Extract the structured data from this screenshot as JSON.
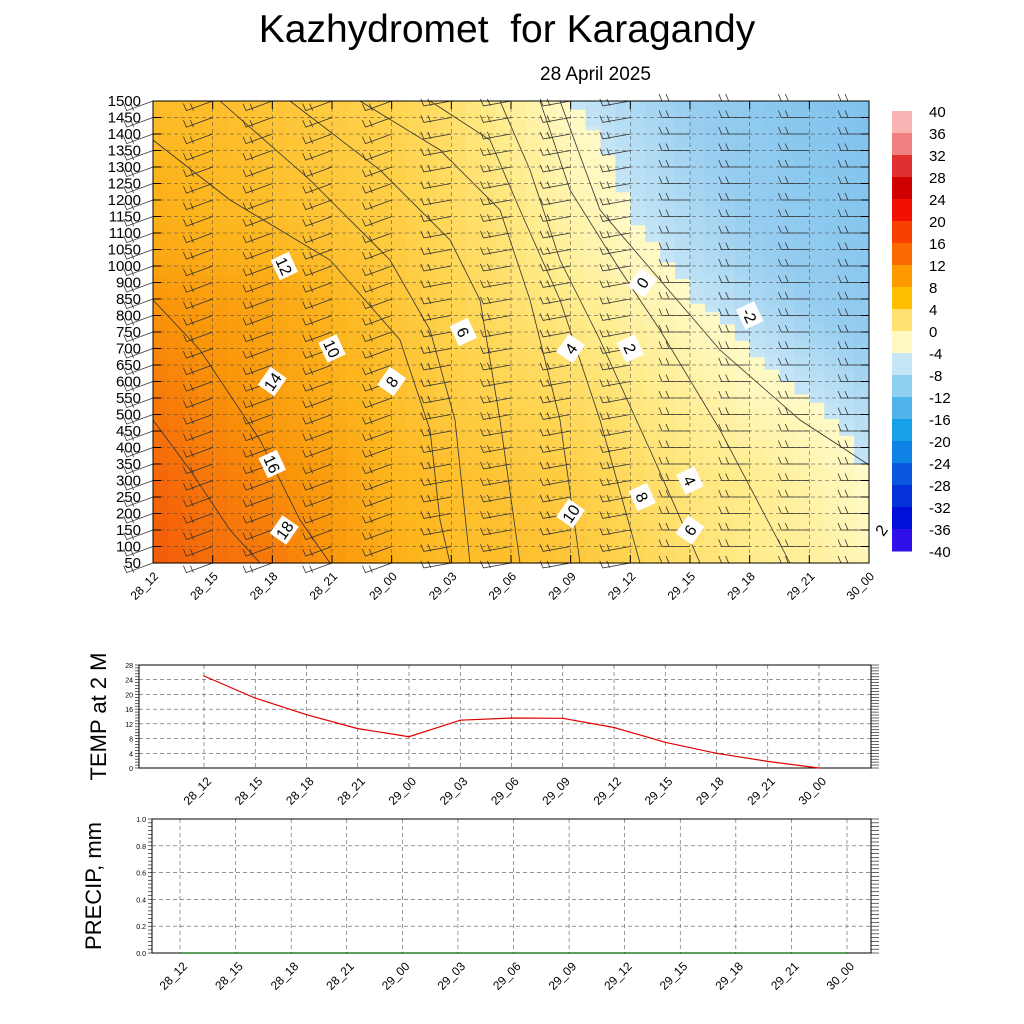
{
  "title": "Kazhydromet  for Karagandy",
  "subtitle": "28 April 2025",
  "chart_data": [
    {
      "type": "heatmap",
      "name": "temperature-height-section",
      "x_categories": [
        "28_12",
        "28_15",
        "28_18",
        "28_21",
        "29_00",
        "29_03",
        "29_06",
        "29_09",
        "29_12",
        "29_15",
        "29_18",
        "29_21",
        "30_00"
      ],
      "y_levels": [
        50,
        100,
        150,
        200,
        250,
        300,
        350,
        400,
        450,
        500,
        550,
        600,
        650,
        700,
        750,
        800,
        850,
        900,
        1000,
        1050,
        1100,
        1150,
        1200,
        1250,
        1300,
        1350,
        1400,
        1450,
        1500
      ],
      "y_tick_labels": [
        "50",
        "100",
        "150",
        "200",
        "250",
        "300",
        "350",
        "400",
        "450",
        "500",
        "550",
        "600",
        "650",
        "700",
        "750",
        "800",
        "850",
        "900",
        "1000",
        "1050",
        "1100",
        "1150",
        "1200",
        "1250",
        "1300",
        "1350",
        "1400",
        "1450",
        "1500"
      ],
      "temperature_grid_rows_bottom_to_top": [
        [
          22,
          20,
          19,
          16,
          13,
          11,
          11,
          10,
          8,
          6,
          4,
          3,
          1
        ],
        [
          21,
          19,
          17,
          15,
          12,
          11,
          10,
          9,
          7,
          5,
          4,
          2,
          0
        ],
        [
          19,
          17,
          15,
          13,
          11,
          9,
          8,
          7,
          5,
          3,
          1,
          0,
          -1
        ],
        [
          16,
          15,
          14,
          12,
          10,
          8,
          6,
          4,
          2,
          0,
          -1,
          -2,
          -3
        ],
        [
          13,
          12,
          11,
          10,
          9,
          7,
          5,
          2,
          0,
          -1,
          -2,
          -3,
          -4
        ],
        [
          11,
          11,
          10,
          9,
          8,
          6,
          3,
          0,
          -1,
          -2,
          -3,
          -4,
          -5
        ]
      ],
      "grid_y_levels": [
        50,
        300,
        550,
        850,
        1150,
        1500
      ],
      "contour_labels": [
        {
          "text": "12",
          "x": "28_18",
          "y": 1000,
          "color": "white-box"
        },
        {
          "text": "14",
          "x": "28_18",
          "y": 600
        },
        {
          "text": "16",
          "x": "28_18",
          "y": 350
        },
        {
          "text": "18",
          "x": "28_18",
          "y": 150
        },
        {
          "text": "10",
          "x": "28_21",
          "y": 700
        },
        {
          "text": "8",
          "x": "29_00",
          "y": 600
        },
        {
          "text": "6",
          "x": "29_03",
          "y": 750
        },
        {
          "text": "4",
          "x": "29_09",
          "y": 700
        },
        {
          "text": "2",
          "x": "29_12",
          "y": 700
        },
        {
          "text": "0",
          "x": "29_12",
          "y": 900
        },
        {
          "text": "-2",
          "x": "29_18",
          "y": 800
        },
        {
          "text": "10",
          "x": "29_09",
          "y": 200
        },
        {
          "text": "8",
          "x": "29_12",
          "y": 250
        },
        {
          "text": "6",
          "x": "29_15",
          "y": 150
        },
        {
          "text": "4",
          "x": "29_15",
          "y": 300
        },
        {
          "text": "2",
          "x": "30_00",
          "y": 150
        }
      ],
      "colorbar": {
        "labels": [
          "40",
          "36",
          "32",
          "28",
          "24",
          "20",
          "16",
          "12",
          "8",
          "4",
          "0",
          "-4",
          "-8",
          "-12",
          "-16",
          "-20",
          "-24",
          "-28",
          "-32",
          "-36",
          "-40"
        ],
        "colors": [
          "#f9b4b4",
          "#f08080",
          "#e03030",
          "#d00000",
          "#f21000",
          "#f84000",
          "#fb6a00",
          "#fd9a00",
          "#ffbf00",
          "#ffe070",
          "#fff8c0",
          "#c6e6f6",
          "#8fcfef",
          "#4fb4ea",
          "#16a0e8",
          "#0f82e6",
          "#0a58e0",
          "#0432d8",
          "#0010d8",
          "#3010e8",
          "#7a28e8"
        ]
      },
      "wind_barbs": true,
      "grid": true
    },
    {
      "type": "line",
      "name": "temp-2m",
      "ylabel": "TEMP at 2 M",
      "ylim": [
        0,
        28
      ],
      "y_ticks": [
        "0",
        "4",
        "8",
        "12",
        "16",
        "20",
        "24",
        "28"
      ],
      "categories": [
        "28_12",
        "28_15",
        "28_18",
        "28_21",
        "29_00",
        "29_03",
        "29_06",
        "29_09",
        "29_12",
        "29_15",
        "29_18",
        "29_21",
        "30_00"
      ],
      "values": [
        25,
        19,
        14.5,
        10.7,
        8.5,
        13,
        13.6,
        13.5,
        11,
        7,
        4,
        1.8,
        0
      ],
      "color": "#e00000",
      "grid": true
    },
    {
      "type": "line",
      "name": "precip",
      "ylabel": "PRECIP, mm",
      "ylim": [
        0,
        1.0
      ],
      "y_ticks": [
        "0.0",
        "0.2",
        "0.4",
        "0.6",
        "0.8",
        "1.0"
      ],
      "categories": [
        "28_12",
        "28_15",
        "28_18",
        "28_21",
        "29_00",
        "29_03",
        "29_06",
        "29_09",
        "29_12",
        "29_15",
        "29_18",
        "29_21",
        "30_00"
      ],
      "values": [
        0,
        0,
        0,
        0,
        0,
        0,
        0,
        0,
        0,
        0,
        0,
        0,
        0
      ],
      "color": "#006400",
      "grid": true
    }
  ]
}
